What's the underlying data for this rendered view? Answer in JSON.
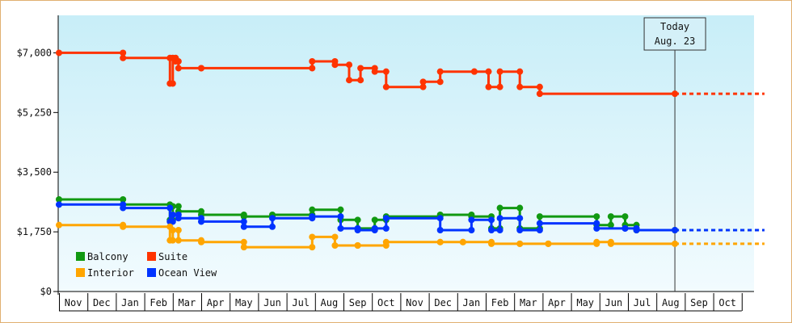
{
  "chart_data": {
    "type": "line",
    "step": true,
    "y_ticks": [
      "$0",
      "$1,750",
      "$3,500",
      "$5,250",
      "$7,000"
    ],
    "y_tick_values": [
      0,
      1750,
      3500,
      5250,
      7000
    ],
    "ylim": [
      0,
      8100
    ],
    "x_months": [
      "Nov",
      "Dec",
      "Jan",
      "Feb",
      "Mar",
      "Apr",
      "May",
      "Jun",
      "Jul",
      "Aug",
      "Sep",
      "Oct",
      "Nov",
      "Dec",
      "Jan",
      "Feb",
      "Mar",
      "Apr",
      "May",
      "Jun",
      "Jul",
      "Aug",
      "Sep",
      "Oct"
    ],
    "today": {
      "line1": "Today",
      "line2": "Aug. 23",
      "x": 21.65
    },
    "x_end": 24.8,
    "legend_placement": "bottom-left",
    "grid": false,
    "colors": {
      "Balcony": "#119911",
      "Suite": "#ff3300",
      "Interior": "#ffa500",
      "Ocean View": "#0033ff",
      "plot_bg_top": "#c8eef8",
      "plot_bg_bottom": "#f2fbfe"
    },
    "legend": [
      {
        "name": "Balcony",
        "color": "#119911"
      },
      {
        "name": "Suite",
        "color": "#ff3300"
      },
      {
        "name": "Interior",
        "color": "#ffa500"
      },
      {
        "name": "Ocean View",
        "color": "#0033ff"
      }
    ],
    "series": [
      {
        "name": "Suite",
        "color": "#ff3300",
        "x": [
          0,
          2.25,
          3.9,
          4.0,
          4.1,
          4.2,
          5.0,
          8.9,
          9.7,
          10.2,
          10.6,
          11.1,
          11.5,
          12.8,
          13.4,
          14.6,
          15.1,
          15.5,
          16.2,
          16.9
        ],
        "y": [
          7000,
          6850,
          6100,
          6850,
          6750,
          6550,
          6550,
          6750,
          6650,
          6200,
          6550,
          6450,
          6000,
          6150,
          6450,
          6450,
          6000,
          6450,
          6000,
          5800
        ],
        "last": 5800
      },
      {
        "name": "Balcony",
        "color": "#119911",
        "x": [
          0,
          2.25,
          3.9,
          4.0,
          4.2,
          5.0,
          6.5,
          7.5,
          8.9,
          9.9,
          10.5,
          11.1,
          11.5,
          13.4,
          14.5,
          15.2,
          15.5,
          16.2,
          16.9,
          18.9,
          19.4,
          19.9,
          20.3
        ],
        "y": [
          2700,
          2550,
          2100,
          2500,
          2350,
          2250,
          2200,
          2250,
          2400,
          2100,
          1850,
          2100,
          2200,
          2250,
          2200,
          1850,
          2450,
          1850,
          2200,
          1950,
          2200,
          1950,
          1800
        ],
        "last": 1800
      },
      {
        "name": "Ocean View",
        "color": "#0033ff",
        "x": [
          0,
          2.25,
          3.9,
          4.0,
          4.2,
          5.0,
          6.5,
          7.5,
          8.9,
          9.9,
          10.5,
          11.1,
          11.5,
          13.4,
          14.5,
          15.2,
          15.5,
          16.2,
          16.9,
          18.9,
          19.9,
          20.3
        ],
        "y": [
          2550,
          2450,
          2050,
          2250,
          2150,
          2050,
          1900,
          2150,
          2200,
          1850,
          1800,
          1850,
          2150,
          1800,
          2100,
          1800,
          2150,
          1800,
          2000,
          1850,
          1850,
          1800
        ],
        "last": 1800
      },
      {
        "name": "Interior",
        "color": "#ffa500",
        "x": [
          0,
          2.25,
          3.9,
          4.0,
          4.2,
          5.0,
          6.5,
          8.9,
          9.7,
          10.5,
          11.5,
          13.4,
          14.2,
          15.2,
          16.2,
          17.2,
          18.9,
          19.4
        ],
        "y": [
          1950,
          1900,
          1500,
          1800,
          1500,
          1450,
          1300,
          1600,
          1350,
          1350,
          1450,
          1450,
          1450,
          1400,
          1400,
          1400,
          1450,
          1400
        ],
        "last": 1400
      }
    ]
  }
}
